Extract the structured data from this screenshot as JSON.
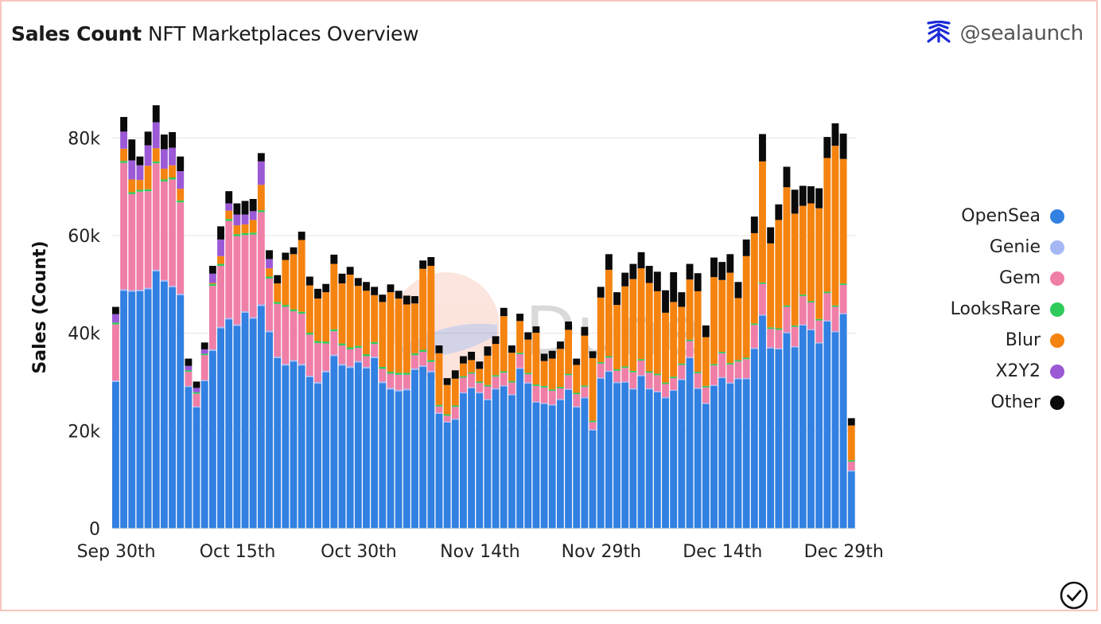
{
  "header": {
    "title": "Sales Count",
    "subtitle": "NFT Marketplaces Overview",
    "brand": "@sealaunch"
  },
  "watermark": "Dune",
  "colors": {
    "OpenSea": "#3180e2",
    "Genie": "#a5b8f5",
    "Gem": "#f07fa8",
    "LooksRare": "#2ecb5a",
    "Blur": "#f5830f",
    "X2Y2": "#9b59d6",
    "Other": "#0a0a0a"
  },
  "chart_data": {
    "type": "bar",
    "stacked": true,
    "title": "",
    "xlabel": "",
    "ylabel": "Sales (Count)",
    "ylim": [
      0,
      90000
    ],
    "y_ticks": [
      0,
      20000,
      40000,
      60000,
      80000
    ],
    "y_tick_labels": [
      "0",
      "20k",
      "40k",
      "60k",
      "80k"
    ],
    "x_tick_labels": [
      {
        "label": "Sep 30th",
        "index": 0
      },
      {
        "label": "Oct 15th",
        "index": 15
      },
      {
        "label": "Oct 30th",
        "index": 30
      },
      {
        "label": "Nov 14th",
        "index": 45
      },
      {
        "label": "Nov 29th",
        "index": 60
      },
      {
        "label": "Dec 14th",
        "index": 75
      },
      {
        "label": "Dec 29th",
        "index": 90
      }
    ],
    "grid": true,
    "legend_position": "right",
    "series": [
      {
        "name": "OpenSea",
        "values": [
          30000,
          48700,
          48500,
          48600,
          49000,
          52700,
          50600,
          49400,
          47800,
          29000,
          24800,
          30200,
          36400,
          41000,
          42800,
          41500,
          44200,
          43000,
          45600,
          40200,
          34900,
          33400,
          34200,
          33400,
          31000,
          29700,
          32000,
          35300,
          33400,
          32900,
          34000,
          32800,
          34900,
          29800,
          28500,
          28100,
          28300,
          32500,
          33100,
          32000,
          23500,
          21700,
          22300,
          27700,
          28700,
          27700,
          26300,
          28500,
          29100,
          27300,
          32700,
          29700,
          25800,
          25500,
          25200,
          26300,
          28400,
          24800,
          26700,
          20100,
          30700,
          32100,
          29800,
          29900,
          28500,
          31200,
          28500,
          27900,
          26700,
          28200,
          30400,
          34900,
          28600,
          25500,
          29200,
          30800,
          29700,
          30600,
          30600,
          36800,
          43600,
          36900,
          36700,
          40000,
          37100,
          41600,
          40600,
          37900,
          42400,
          40200,
          43900,
          11700
        ]
      },
      {
        "name": "Genie",
        "values": [
          300,
          300,
          300,
          300,
          300,
          300,
          300,
          300,
          300,
          200,
          200,
          200,
          300,
          300,
          300,
          300,
          300,
          300,
          300,
          300,
          300,
          300,
          300,
          300,
          300,
          300,
          300,
          300,
          300,
          300,
          300,
          300,
          300,
          300,
          300,
          300,
          300,
          300,
          300,
          300,
          200,
          200,
          200,
          200,
          200,
          200,
          200,
          200,
          200,
          200,
          200,
          200,
          200,
          200,
          200,
          200,
          200,
          200,
          200,
          200,
          200,
          200,
          200,
          200,
          200,
          200,
          200,
          200,
          200,
          200,
          200,
          200,
          200,
          200,
          200,
          200,
          200,
          200,
          200,
          200,
          200,
          200,
          200,
          200,
          200,
          200,
          200,
          200,
          200,
          200,
          200,
          200
        ]
      },
      {
        "name": "Gem",
        "values": [
          11500,
          25900,
          19700,
          20100,
          19800,
          21800,
          20200,
          21800,
          18700,
          2900,
          2600,
          5100,
          13000,
          12500,
          19900,
          18100,
          15600,
          16900,
          18900,
          10700,
          10800,
          11700,
          10000,
          10300,
          8400,
          8000,
          5600,
          4800,
          3800,
          3500,
          2700,
          2200,
          2600,
          2600,
          2900,
          3100,
          2900,
          2700,
          2800,
          1800,
          1300,
          1200,
          2400,
          3000,
          2800,
          1900,
          2600,
          2400,
          2600,
          2400,
          2800,
          1700,
          3200,
          3200,
          2800,
          2200,
          2800,
          2500,
          2100,
          1500,
          2900,
          2700,
          2300,
          2800,
          3300,
          3000,
          3200,
          3300,
          2700,
          2400,
          2900,
          3300,
          3000,
          3200,
          4000,
          4900,
          3700,
          3400,
          3900,
          4700,
          6300,
          3800,
          3800,
          5200,
          4000,
          5800,
          5500,
          4500,
          5600,
          5000,
          5800,
          1800
        ]
      },
      {
        "name": "LooksRare",
        "values": [
          400,
          400,
          400,
          400,
          400,
          400,
          400,
          400,
          400,
          300,
          300,
          300,
          400,
          400,
          400,
          400,
          400,
          400,
          400,
          400,
          400,
          400,
          400,
          400,
          400,
          400,
          400,
          400,
          400,
          400,
          400,
          400,
          400,
          400,
          400,
          400,
          400,
          400,
          400,
          400,
          300,
          300,
          300,
          300,
          300,
          300,
          300,
          300,
          300,
          300,
          300,
          300,
          300,
          300,
          300,
          300,
          300,
          300,
          300,
          300,
          300,
          300,
          300,
          300,
          300,
          300,
          300,
          300,
          300,
          300,
          300,
          300,
          300,
          300,
          300,
          300,
          300,
          300,
          300,
          300,
          300,
          300,
          300,
          300,
          300,
          300,
          300,
          300,
          300,
          300,
          300,
          300
        ]
      },
      {
        "name": "Blur",
        "values": [
          0,
          2500,
          2600,
          2000,
          4800,
          2700,
          2200,
          2500,
          2400,
          0,
          0,
          0,
          200,
          1600,
          1700,
          1800,
          1800,
          2600,
          5200,
          1700,
          3800,
          9200,
          11300,
          14700,
          9700,
          8700,
          10100,
          13400,
          12300,
          14900,
          12300,
          13000,
          9600,
          13300,
          16300,
          15200,
          14000,
          10200,
          16600,
          19300,
          10600,
          6000,
          5500,
          2600,
          2500,
          2600,
          6000,
          6400,
          11300,
          5800,
          6500,
          6800,
          10600,
          5100,
          6300,
          7800,
          9000,
          5700,
          10200,
          12800,
          13200,
          17700,
          13200,
          16400,
          18800,
          18600,
          18100,
          16900,
          14300,
          15300,
          11600,
          12300,
          16500,
          10000,
          17800,
          14700,
          18500,
          12700,
          20800,
          18500,
          24800,
          17200,
          22200,
          24200,
          22900,
          18200,
          20000,
          22700,
          27400,
          32700,
          25500,
          7100
        ]
      },
      {
        "name": "X2Y2",
        "values": [
          1700,
          3500,
          3900,
          3000,
          4200,
          5300,
          4000,
          3600,
          3600,
          900,
          900,
          900,
          1900,
          3400,
          1500,
          2200,
          2000,
          1800,
          4800,
          1900,
          0,
          0,
          0,
          0,
          0,
          0,
          0,
          0,
          0,
          0,
          0,
          0,
          0,
          0,
          0,
          0,
          0,
          0,
          0,
          0,
          0,
          0,
          0,
          0,
          0,
          0,
          0,
          0,
          0,
          0,
          0,
          0,
          0,
          0,
          0,
          0,
          0,
          0,
          0,
          0,
          0,
          0,
          0,
          0,
          0,
          0,
          0,
          0,
          0,
          0,
          0,
          0,
          0,
          0,
          0,
          0,
          0,
          0,
          0,
          0,
          0,
          0,
          0,
          0,
          0,
          0,
          0,
          0,
          0,
          0,
          0,
          0
        ]
      },
      {
        "name": "Other",
        "values": [
          1500,
          3000,
          4300,
          1800,
          2800,
          3500,
          3000,
          3200,
          3000,
          1500,
          1300,
          1400,
          1600,
          2700,
          2500,
          2300,
          2800,
          2500,
          1700,
          1800,
          1700,
          1500,
          1400,
          1700,
          1800,
          2000,
          1700,
          1900,
          2000,
          1600,
          1600,
          1800,
          1700,
          1500,
          1600,
          1600,
          1800,
          1500,
          1700,
          1800,
          1600,
          1400,
          1700,
          1500,
          1700,
          1500,
          1900,
          1600,
          1700,
          1500,
          1500,
          1500,
          1300,
          1500,
          1600,
          1500,
          1700,
          1300,
          1800,
          1400,
          2200,
          3200,
          2600,
          2800,
          3100,
          3300,
          3500,
          4000,
          4600,
          6100,
          3000,
          3200,
          3700,
          2400,
          4000,
          3700,
          3800,
          3300,
          3400,
          3400,
          5600,
          3300,
          3200,
          4200,
          4900,
          4100,
          3500,
          4100,
          4300,
          4600,
          5200,
          1500
        ]
      }
    ]
  }
}
